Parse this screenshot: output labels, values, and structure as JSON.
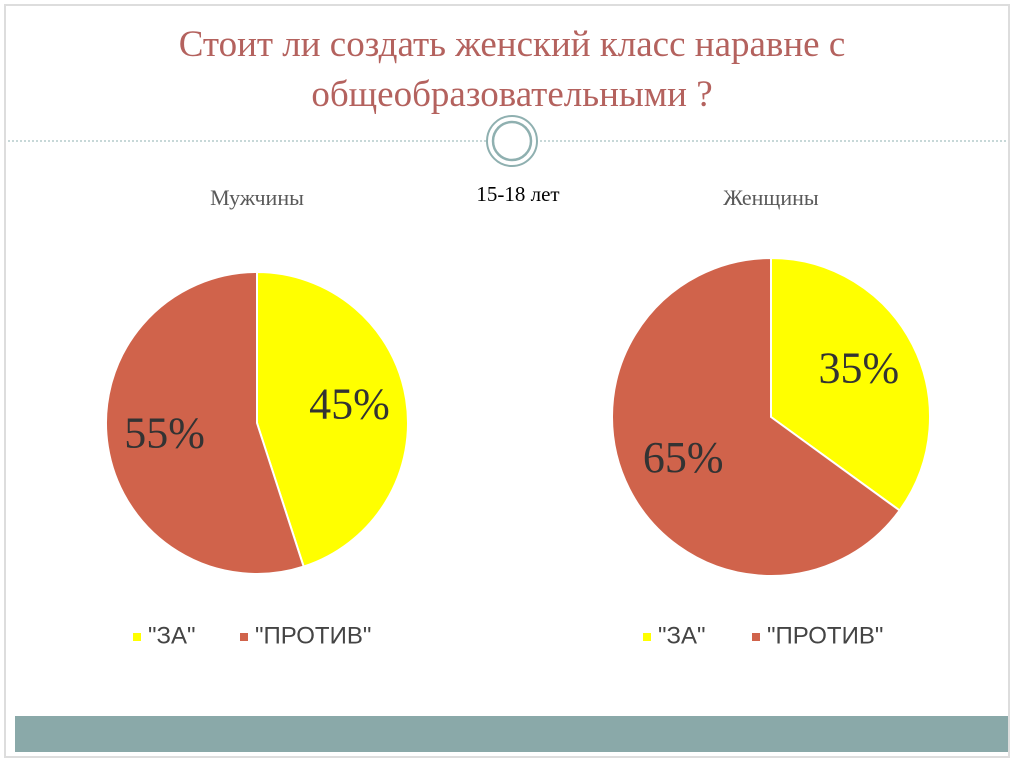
{
  "title": "Стоит ли создать женский класс наравне с общеобразовательными ?",
  "subtitle": "15-18 лет",
  "chart_data": [
    {
      "type": "pie",
      "title": "Мужчины",
      "categories": [
        "\"ЗА\"",
        "\"ПРОТИВ\""
      ],
      "values": [
        45,
        55
      ],
      "value_labels": [
        "45%",
        "55%"
      ],
      "colors": [
        "#ffff00",
        "#d0634b"
      ]
    },
    {
      "type": "pie",
      "title": "Женщины",
      "categories": [
        "\"ЗА\"",
        "\"ПРОТИВ\""
      ],
      "values": [
        35,
        65
      ],
      "value_labels": [
        "35%",
        "65%"
      ],
      "colors": [
        "#ffff00",
        "#d0634b"
      ]
    }
  ]
}
